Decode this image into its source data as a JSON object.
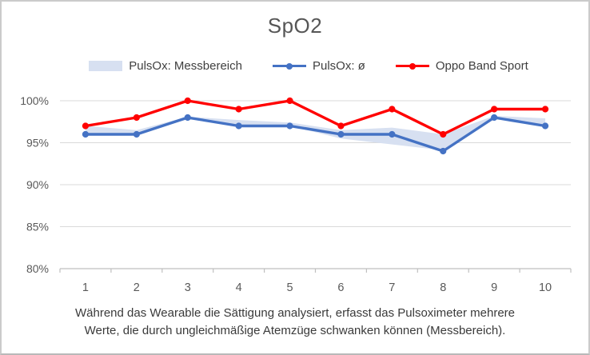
{
  "chart_data": {
    "type": "line",
    "title": "SpO2",
    "categories": [
      1,
      2,
      3,
      4,
      5,
      6,
      7,
      8,
      9,
      10
    ],
    "series": [
      {
        "name": "PulsOx: Messbereich",
        "type": "area_range",
        "min": [
          96.0,
          96.0,
          97.8,
          97.0,
          97.0,
          95.5,
          94.8,
          94.1,
          98.0,
          97.0
        ],
        "max": [
          97.0,
          96.5,
          98.1,
          97.7,
          97.4,
          96.5,
          96.8,
          96.0,
          98.2,
          97.9
        ],
        "color": "#D7E0F1"
      },
      {
        "name": "PulsOx: ø",
        "type": "line",
        "values": [
          96,
          96,
          98,
          97,
          97,
          96,
          96,
          94,
          98,
          97
        ],
        "color": "#4472C4",
        "marker": "circle"
      },
      {
        "name": "Oppo Band Sport",
        "type": "line",
        "values": [
          97,
          98,
          100,
          99,
          100,
          97,
          99,
          96,
          99,
          99
        ],
        "color": "#FF0000",
        "marker": "circle"
      }
    ],
    "ylim": [
      80,
      100
    ],
    "yticks": [
      100,
      95,
      90,
      85,
      80
    ],
    "ytick_suffix": "%",
    "xlabel": "",
    "ylabel": "",
    "grid": true,
    "legend_position": "top",
    "caption": "Während das Wearable die Sättigung analysiert, erfasst das Pulsoximeter mehrere Werte, die durch ungleichmäßige Atemzüge schwanken können (Messbereich)."
  },
  "colors": {
    "gridline": "#D9D9D9",
    "axis_line": "#BFBFBF",
    "tick_label": "#595959",
    "title_text": "#565656",
    "legend_text": "#3F3F3F",
    "caption_text": "#3A3A3A",
    "background": "#FFFFFF",
    "border": "#CBCBCB"
  }
}
